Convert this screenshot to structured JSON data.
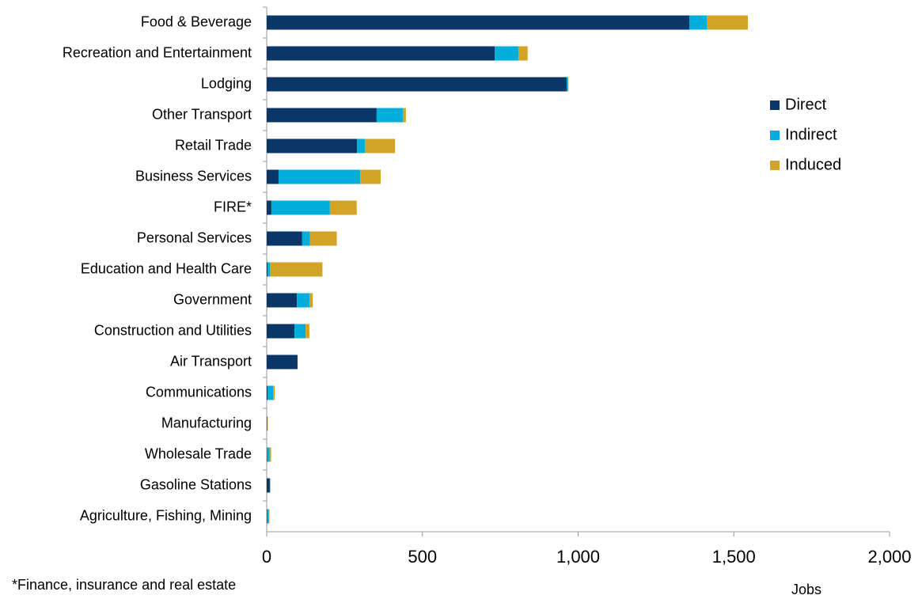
{
  "chart_data": {
    "type": "stacked-barh",
    "categories": [
      "Food & Beverage",
      "Recreation and Entertainment",
      "Lodging",
      "Other Transport",
      "Retail Trade",
      "Business Services",
      "FIRE*",
      "Personal Services",
      "Education and Health Care",
      "Government",
      "Construction and Utilities",
      "Air Transport",
      "Communications",
      "Manufacturing",
      "Wholesale Trade",
      "Gasoline Stations",
      "Agriculture, Fishing, Mining"
    ],
    "series": [
      {
        "name": "Direct",
        "color": "#0b3668",
        "values": [
          1357,
          732,
          963,
          353,
          290,
          38,
          15,
          114,
          3,
          97,
          89,
          99,
          3,
          1,
          1,
          10,
          2
        ]
      },
      {
        "name": "Indirect",
        "color": "#00aedb",
        "values": [
          56,
          76,
          4,
          84,
          25,
          262,
          188,
          25,
          8,
          41,
          36,
          0,
          18,
          2,
          8,
          1,
          5
        ]
      },
      {
        "name": "Induced",
        "color": "#d3a327",
        "values": [
          132,
          30,
          2,
          10,
          97,
          66,
          86,
          86,
          168,
          10,
          12,
          0,
          5,
          1,
          5,
          1,
          2
        ]
      }
    ],
    "xlim": [
      0,
      2000
    ],
    "xticks": [
      0,
      500,
      {
        "value": 1000,
        "label": "1,000"
      },
      {
        "value": 1500,
        "label": "1,500"
      },
      {
        "value": 2000,
        "label": "2,000"
      }
    ],
    "xlabel": "Jobs",
    "footnote": "*Finance, insurance and real estate",
    "legend": "right"
  }
}
